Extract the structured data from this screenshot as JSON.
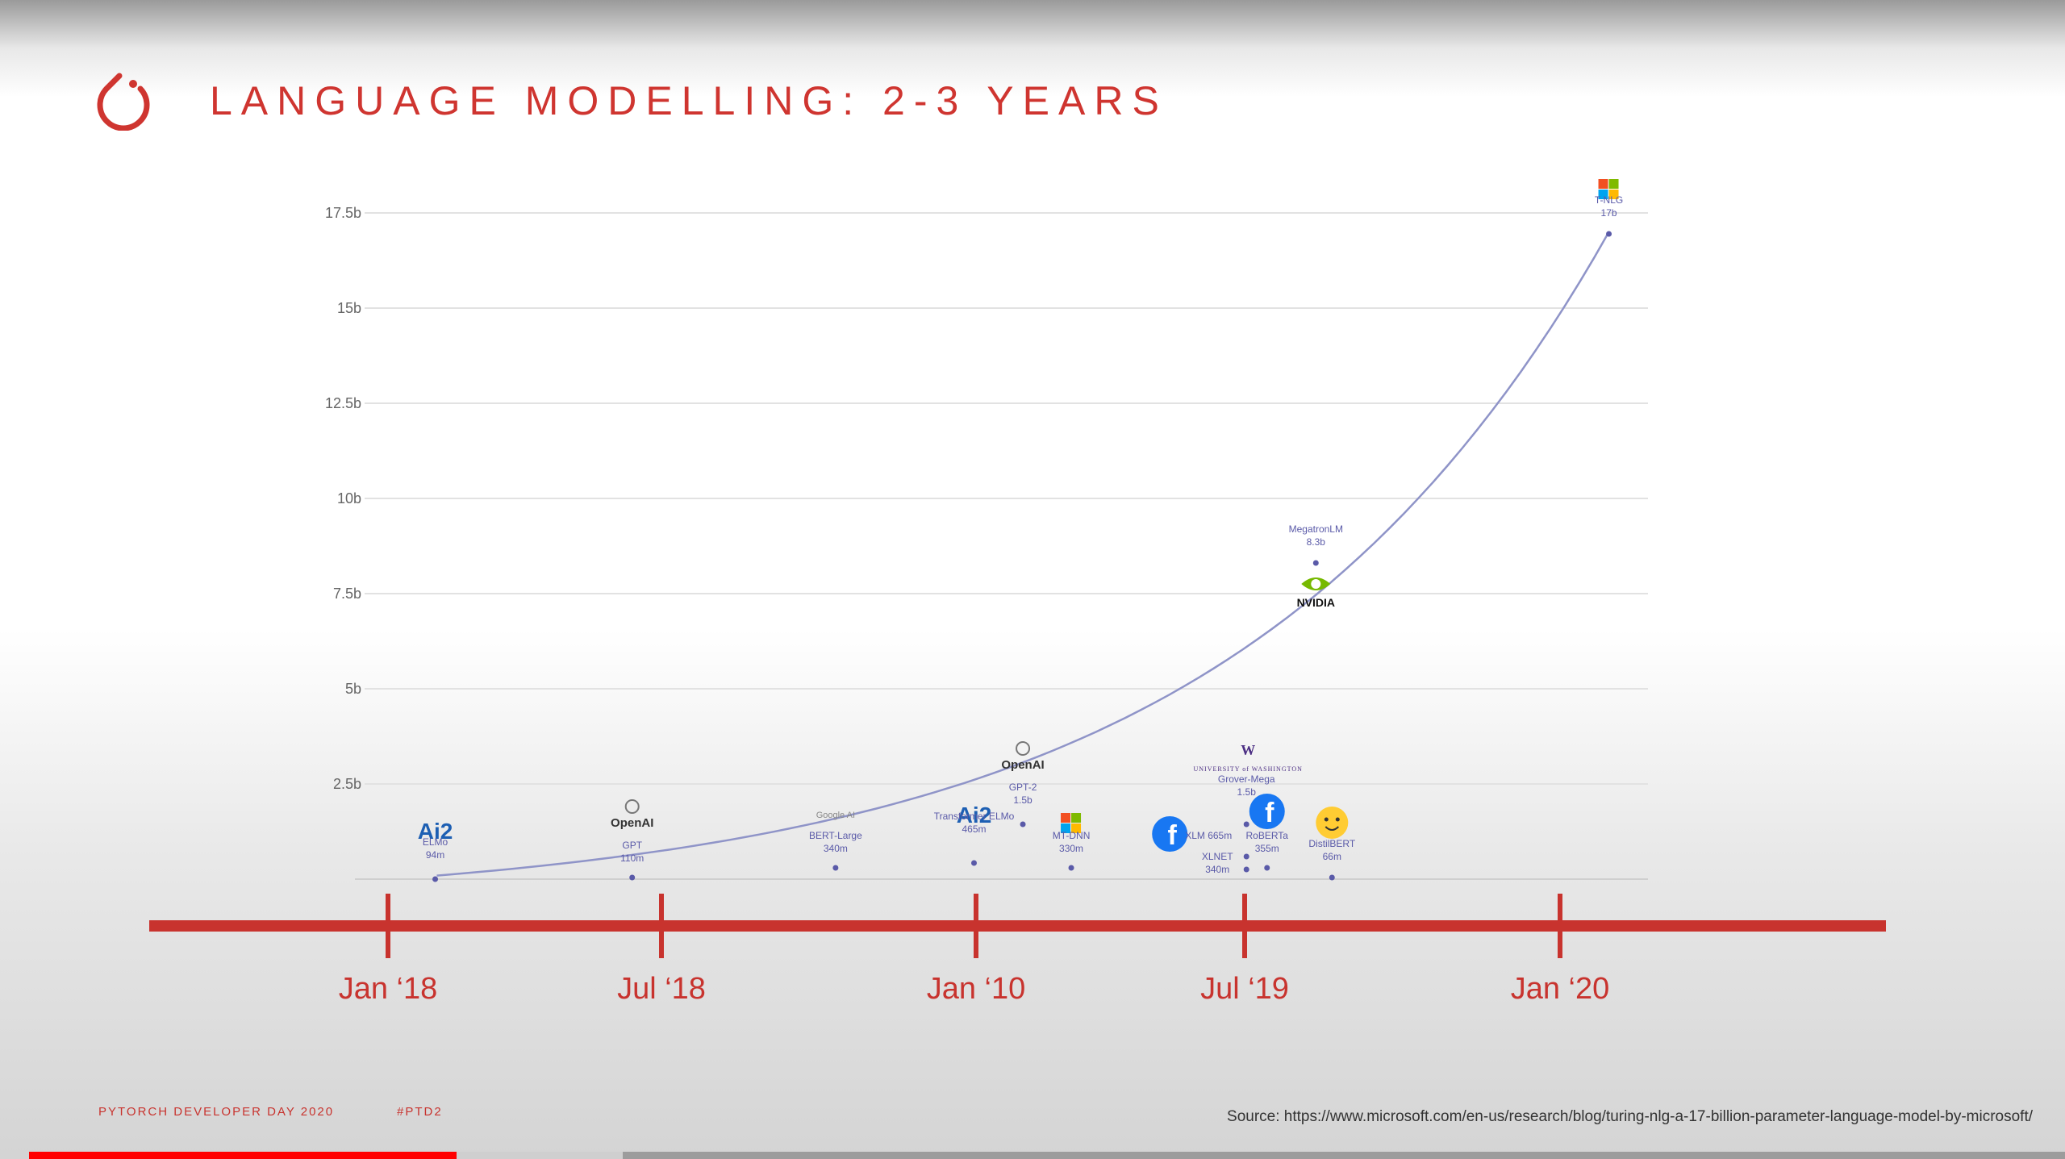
{
  "slide": {
    "title": "LANGUAGE MODELLING: 2-3 YEARS",
    "footer_left": "PYTORCH DEVELOPER DAY 2020",
    "footer_tag": "#PTD2",
    "source": "Source: https://www.microsoft.com/en-us/research/blog/turing-nlg-a-17-billion-parameter-language-model-by-microsoft/",
    "accent_color": "#cf3530",
    "curve_color": "#8f94c8"
  },
  "video": {
    "progress": 0.21
  },
  "chart_data": {
    "type": "scatter",
    "title": "",
    "xlabel": "",
    "ylabel": "",
    "ylim": [
      0,
      17.5
    ],
    "y_unit": "b",
    "y_ticks": [
      "2.5b",
      "5b",
      "7.5b",
      "10b",
      "12.5b",
      "15b",
      "17.5b"
    ],
    "x_ticks": [
      "Jan '18",
      "Jul '18",
      "Jan '10",
      "Jul '19",
      "Jan '20"
    ],
    "x_ticks_display": [
      "Jan ‘18",
      "Jul ‘18",
      "Jan ‘10",
      "Jul ‘19",
      "Jan ‘20"
    ],
    "grid": true,
    "trend_curve": "exponential",
    "points": [
      {
        "org": "Ai2",
        "model": "ELMo",
        "size": "94m",
        "date": "2018-02",
        "params_b": 0.094
      },
      {
        "org": "OpenAI",
        "model": "GPT",
        "size": "110m",
        "date": "2018-06",
        "params_b": 0.11
      },
      {
        "org": "Google AI",
        "model": "BERT-Large",
        "size": "340m",
        "date": "2018-10",
        "params_b": 0.34
      },
      {
        "org": "Ai2",
        "model": "Transformer ELMo",
        "size": "465m",
        "date": "2019-01",
        "params_b": 0.465
      },
      {
        "org": "OpenAI",
        "model": "GPT-2",
        "size": "1.5b",
        "date": "2019-02",
        "params_b": 1.5
      },
      {
        "org": "Microsoft",
        "model": "MT-DNN",
        "size": "330m",
        "date": "2019-02",
        "params_b": 0.33
      },
      {
        "org": "Facebook",
        "model": "XLM",
        "size": "665m",
        "date": "2019-06",
        "params_b": 0.665
      },
      {
        "org": "UNIVERSITY of WASHINGTON",
        "model": "Grover-Mega",
        "size": "1.5b",
        "date": "2019-06",
        "params_b": 1.5
      },
      {
        "org": "",
        "model": "XLNET",
        "size": "340m",
        "date": "2019-06",
        "params_b": 0.34
      },
      {
        "org": "Facebook",
        "model": "RoBERTa",
        "size": "355m",
        "date": "2019-07",
        "params_b": 0.355
      },
      {
        "org": "NVIDIA",
        "model": "MegatronLM",
        "size": "8.3b",
        "date": "2019-08",
        "params_b": 8.3
      },
      {
        "org": "Hugging Face",
        "model": "DistilBERT",
        "size": "66m",
        "date": "2019-08",
        "params_b": 0.066
      },
      {
        "org": "Microsoft",
        "model": "T-NLG",
        "size": "17b",
        "date": "2020-02",
        "params_b": 17
      }
    ]
  }
}
